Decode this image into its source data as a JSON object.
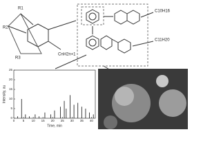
{
  "scheme": {
    "r1": "R1",
    "r2": "R2",
    "r3": "R3",
    "alkyl": "CnH2n+1",
    "product_top": "C10H16",
    "product_bottom": "C11H20"
  },
  "chromatogram": {
    "x_label": "Time, min",
    "y_label": "Intensity, au",
    "xlim": [
      0,
      42
    ],
    "ylim": [
      0,
      25
    ],
    "xticks": [
      0,
      5,
      10,
      15,
      20,
      25,
      30,
      35,
      40
    ],
    "yticks": [
      0,
      5,
      10,
      15,
      20,
      25
    ],
    "peaks": {
      "x": [
        2,
        4,
        6,
        8,
        11,
        13,
        16,
        19,
        21,
        24,
        26,
        27,
        29,
        31,
        33,
        35,
        37,
        39,
        41
      ],
      "height": [
        1,
        10,
        2,
        1,
        2,
        1,
        3,
        2,
        4,
        6,
        9,
        5,
        12,
        7,
        8,
        6,
        5,
        3,
        2
      ]
    }
  }
}
